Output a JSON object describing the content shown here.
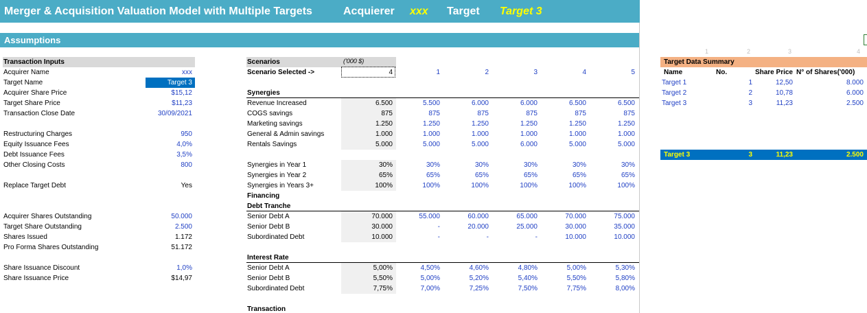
{
  "header": {
    "title": "Merger & Acquisition Valuation Model with Multiple Targets",
    "acquirer_label": "Acquierer",
    "acquirer_value": "xxx",
    "target_label": "Target",
    "target_value": "Target 3"
  },
  "section": {
    "title": "Assumptions"
  },
  "transaction_inputs": {
    "heading": "Transaction Inputs",
    "rows": [
      {
        "label": "Acquirer Name",
        "value": "xxx"
      },
      {
        "label": "Target Name",
        "value": "Target 3"
      },
      {
        "label": "Acquirer Share Price",
        "value": "$15,12"
      },
      {
        "label": "Target Share Price",
        "value": "$11,23"
      },
      {
        "label": "Transaction Close Date",
        "value": "30/09/2021"
      },
      {
        "label": "Restructuring Charges",
        "value": "950"
      },
      {
        "label": "Equity Issuance Fees",
        "value": "4,0%"
      },
      {
        "label": "Debt Issuance Fees",
        "value": "3,5%"
      },
      {
        "label": "Other Closing Costs",
        "value": "800"
      },
      {
        "label": "Replace Target Debt",
        "value": "Yes"
      },
      {
        "label": "Acquirer Shares Outstanding",
        "value": "50.000"
      },
      {
        "label": "Target Share Outstanding",
        "value": "2.500"
      },
      {
        "label": "Shares Issued",
        "value": "1.172"
      },
      {
        "label": "Pro Forma Shares Outstanding",
        "value": "51.172"
      },
      {
        "label": "Share Issuance Discount",
        "value": "1,0%"
      },
      {
        "label": "Share Issuance Price",
        "value": "$14,97"
      }
    ]
  },
  "scenarios": {
    "heading": "Scenarios",
    "units": "('000 $)",
    "selected_label": "Scenario Selected ->",
    "selected_value": "4",
    "columns": [
      "1",
      "2",
      "3",
      "4",
      "5"
    ],
    "synergies_heading": "Synergies",
    "synergies": [
      {
        "label": "Revenue Increased",
        "current": "6.500",
        "values": [
          "5.500",
          "6.000",
          "6.000",
          "6.500",
          "6.500"
        ]
      },
      {
        "label": "COGS savings",
        "current": "875",
        "values": [
          "875",
          "875",
          "875",
          "875",
          "875"
        ]
      },
      {
        "label": "Marketing savings",
        "current": "1.250",
        "values": [
          "1.250",
          "1.250",
          "1.250",
          "1.250",
          "1.250"
        ]
      },
      {
        "label": "General & Admin savings",
        "current": "1.000",
        "values": [
          "1.000",
          "1.000",
          "1.000",
          "1.000",
          "1.000"
        ]
      },
      {
        "label": "Rentals Savings",
        "current": "5.000",
        "values": [
          "5.000",
          "5.000",
          "6.000",
          "5.000",
          "5.000"
        ]
      }
    ],
    "phasing": [
      {
        "label": "Synergies in Year 1",
        "current": "30%",
        "values": [
          "30%",
          "30%",
          "30%",
          "30%",
          "30%"
        ]
      },
      {
        "label": "Synergies in Year 2",
        "current": "65%",
        "values": [
          "65%",
          "65%",
          "65%",
          "65%",
          "65%"
        ]
      },
      {
        "label": "Synergies in Years 3+",
        "current": "100%",
        "values": [
          "100%",
          "100%",
          "100%",
          "100%",
          "100%"
        ]
      }
    ],
    "financing_heading": "Financing",
    "debt_tranche_heading": "Debt Tranche",
    "debt": [
      {
        "label": "Senior Debt A",
        "current": "70.000",
        "values": [
          "55.000",
          "60.000",
          "65.000",
          "70.000",
          "75.000"
        ]
      },
      {
        "label": "Senior Debt B",
        "current": "30.000",
        "values": [
          "-",
          "20.000",
          "25.000",
          "30.000",
          "35.000"
        ]
      },
      {
        "label": "Subordinated Debt",
        "current": "10.000",
        "values": [
          "-",
          "-",
          "-",
          "10.000",
          "10.000"
        ]
      }
    ],
    "interest_heading": "Interest Rate",
    "interest": [
      {
        "label": "Senior Debt A",
        "current": "5,00%",
        "values": [
          "4,50%",
          "4,60%",
          "4,80%",
          "5,00%",
          "5,30%"
        ]
      },
      {
        "label": "Senior Debt B",
        "current": "5,50%",
        "values": [
          "5,00%",
          "5,20%",
          "5,40%",
          "5,50%",
          "5,80%"
        ]
      },
      {
        "label": "Subordinated Debt",
        "current": "7,75%",
        "values": [
          "7,00%",
          "7,25%",
          "7,50%",
          "7,75%",
          "8,00%"
        ]
      }
    ],
    "transaction_heading": "Transaction"
  },
  "target_summary": {
    "col_numbers": [
      "1",
      "2",
      "3",
      "4"
    ],
    "heading": "Target Data Summary",
    "columns": [
      "Name",
      "No.",
      "Share Price",
      "N° of Shares('000)"
    ],
    "rows": [
      {
        "name": "Target 1",
        "no": "1",
        "price": "12,50",
        "shares": "8.000"
      },
      {
        "name": "Target 2",
        "no": "2",
        "price": "10,78",
        "shares": "6.000"
      },
      {
        "name": "Target 3",
        "no": "3",
        "price": "11,23",
        "shares": "2.500"
      }
    ],
    "selected": {
      "name": "Target 3",
      "no": "3",
      "price": "11,23",
      "shares": "2.500"
    }
  },
  "colors": {
    "header_bg": "#4bacc6",
    "accent_yellow": "#ffff00",
    "input_blue": "#1f3fc4",
    "summary_header": "#f4b183",
    "selected_bg": "#0070c0"
  }
}
